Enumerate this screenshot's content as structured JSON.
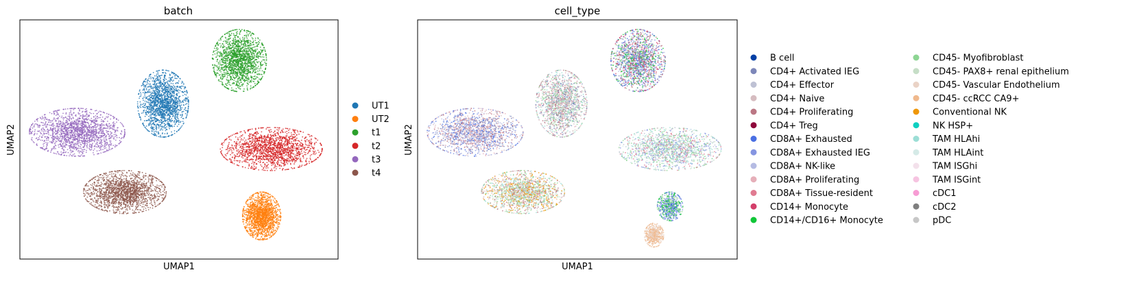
{
  "chart_data": [
    {
      "type": "scatter",
      "title": "batch",
      "xlabel": "UMAP1",
      "ylabel": "UMAP2",
      "grid": false,
      "legend_placement": "right",
      "series": [
        {
          "name": "UT1",
          "color": "#1f77b4",
          "clusters": [
            {
              "cx": 0.45,
              "cy": 0.65,
              "rx": 0.08,
              "ry": 0.14
            }
          ]
        },
        {
          "name": "UT2",
          "color": "#ff7f0e",
          "clusters": [
            {
              "cx": 0.76,
              "cy": 0.18,
              "rx": 0.06,
              "ry": 0.1
            }
          ]
        },
        {
          "name": "t1",
          "color": "#2ca02c",
          "clusters": [
            {
              "cx": 0.69,
              "cy": 0.83,
              "rx": 0.085,
              "ry": 0.13
            }
          ]
        },
        {
          "name": "t2",
          "color": "#d62728",
          "clusters": [
            {
              "cx": 0.79,
              "cy": 0.46,
              "rx": 0.16,
              "ry": 0.09
            }
          ]
        },
        {
          "name": "t3",
          "color": "#9467bd",
          "clusters": [
            {
              "cx": 0.18,
              "cy": 0.53,
              "rx": 0.15,
              "ry": 0.1
            }
          ]
        },
        {
          "name": "t4",
          "color": "#8c564b",
          "clusters": [
            {
              "cx": 0.33,
              "cy": 0.28,
              "rx": 0.13,
              "ry": 0.09
            }
          ]
        }
      ]
    },
    {
      "type": "scatter",
      "title": "cell_type",
      "xlabel": "UMAP1",
      "ylabel": "UMAP2",
      "grid": false,
      "legend_placement": "right",
      "legend_columns": 2,
      "categories": [
        {
          "name": "B cell",
          "color": "#023fa5"
        },
        {
          "name": "CD4+ Activated IEG",
          "color": "#7d87b9"
        },
        {
          "name": "CD4+ Effector",
          "color": "#bec1d4"
        },
        {
          "name": "CD4+ Naive",
          "color": "#d6bcc0"
        },
        {
          "name": "CD4+ Proliferating",
          "color": "#bb7784"
        },
        {
          "name": "CD4+ Treg",
          "color": "#8e063b"
        },
        {
          "name": "CD8A+ Exhausted",
          "color": "#4a6fe3"
        },
        {
          "name": "CD8A+ Exhausted IEG",
          "color": "#8595e1"
        },
        {
          "name": "CD8A+ NK-like",
          "color": "#b5bbe3"
        },
        {
          "name": "CD8A+ Proliferating",
          "color": "#e6afb9"
        },
        {
          "name": "CD8A+ Tissue-resident",
          "color": "#e07b91"
        },
        {
          "name": "CD14+ Monocyte",
          "color": "#d33f6a"
        },
        {
          "name": "CD14+/CD16+ Monocyte",
          "color": "#11c638"
        },
        {
          "name": "CD45- Myofibroblast",
          "color": "#8dd593"
        },
        {
          "name": "CD45- PAX8+ renal epithelium",
          "color": "#c6dec7"
        },
        {
          "name": "CD45- Vascular Endothelium",
          "color": "#ead3c6"
        },
        {
          "name": "CD45- ccRCC CA9+",
          "color": "#f0b98d"
        },
        {
          "name": "Conventional NK",
          "color": "#ef9708"
        },
        {
          "name": "NK HSP+",
          "color": "#0fcfc0"
        },
        {
          "name": "TAM HLAhi",
          "color": "#9cded6"
        },
        {
          "name": "TAM HLAint",
          "color": "#d5eae7"
        },
        {
          "name": "TAM ISGhi",
          "color": "#f3e1eb"
        },
        {
          "name": "TAM ISGint",
          "color": "#f6c4e1"
        },
        {
          "name": "cDC1",
          "color": "#f79cd4"
        },
        {
          "name": "cDC2",
          "color": "#7f7f7f"
        },
        {
          "name": "pDC",
          "color": "#c7c7c7"
        }
      ],
      "clusters": [
        {
          "cx": 0.45,
          "cy": 0.65,
          "rx": 0.08,
          "ry": 0.14,
          "palette": [
            "#7d87b9",
            "#bec1d4",
            "#d6bcc0",
            "#c6dec7",
            "#8dd593",
            "#e6afb9",
            "#bb7784",
            "#9cded6"
          ]
        },
        {
          "cx": 0.69,
          "cy": 0.83,
          "rx": 0.085,
          "ry": 0.13,
          "palette": [
            "#4a6fe3",
            "#8595e1",
            "#7d87b9",
            "#d33f6a",
            "#11c638",
            "#b5bbe3",
            "#bb7784",
            "#8dd593"
          ]
        },
        {
          "cx": 0.79,
          "cy": 0.46,
          "rx": 0.16,
          "ry": 0.09,
          "palette": [
            "#c6dec7",
            "#9cded6",
            "#d5eae7",
            "#8595e1",
            "#bec1d4",
            "#e07b91",
            "#8dd593"
          ]
        },
        {
          "cx": 0.18,
          "cy": 0.53,
          "rx": 0.15,
          "ry": 0.1,
          "palette": [
            "#4a6fe3",
            "#8595e1",
            "#7d87b9",
            "#b5bbe3",
            "#bb7784",
            "#e6afb9",
            "#d6bcc0"
          ]
        },
        {
          "cx": 0.33,
          "cy": 0.28,
          "rx": 0.13,
          "ry": 0.09,
          "palette": [
            "#f0b98d",
            "#8dd593",
            "#c6dec7",
            "#bb7784",
            "#ef9708",
            "#9cded6",
            "#d6bcc0"
          ]
        },
        {
          "cx": 0.79,
          "cy": 0.22,
          "rx": 0.04,
          "ry": 0.06,
          "palette": [
            "#11c638",
            "#8595e1",
            "#4a6fe3",
            "#8dd593"
          ]
        },
        {
          "cx": 0.74,
          "cy": 0.1,
          "rx": 0.03,
          "ry": 0.05,
          "palette": [
            "#f0b98d",
            "#ead3c6"
          ]
        }
      ]
    }
  ]
}
